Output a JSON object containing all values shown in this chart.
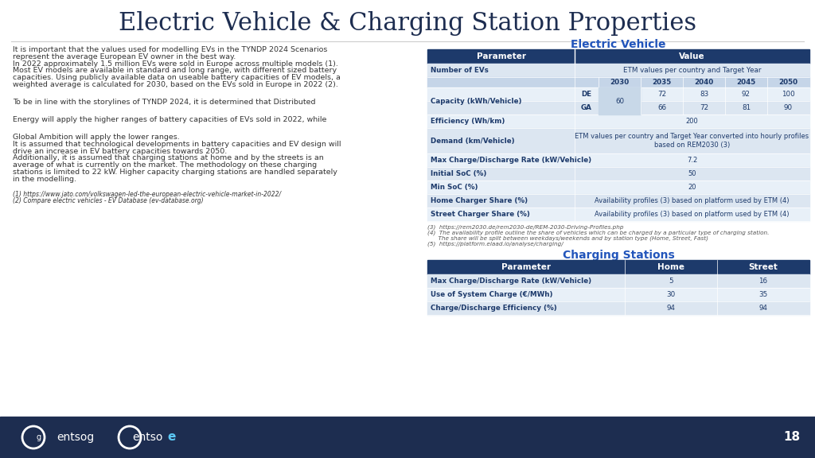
{
  "title": "Electric Vehicle & Charging Station Properties",
  "bg_color": "#ffffff",
  "footer_color": "#1d2d50",
  "title_color": "#1d2d50",
  "title_fontsize": 22,
  "ev_header_color": "#1d3a6b",
  "ev_text_color": "#1d3a6b",
  "ev_row_light": "#dce6f1",
  "ev_row_mid": "#c5d5e8",
  "ev_row_lighter": "#e8f0f8",
  "left_text": [
    "It is important that the values used for modelling EVs in the TYNDP 2024 Scenarios",
    "represent the average European EV owner in the best way.",
    "In 2022 approximately 1.5 million EVs were sold in Europe across multiple models (1).",
    "Most EV models are available in standard and long range, with different sized battery",
    "capacities. Using publicly available data on useable battery capacities of EV models, a",
    "weighted average is calculated for 2030, based on the EVs sold in Europe in 2022 (2).",
    "",
    "To be in line with the storylines of TYNDP 2024, it is determined that Distributed",
    "",
    "Energy will apply the higher ranges of battery capacities of EVs sold in 2022, while",
    "",
    "Global Ambition will apply the lower ranges.",
    "It is assumed that technological developments in battery capacities and EV design will",
    "drive an increase in EV battery capacities towards 2050.",
    "Additionally, it is assumed that charging stations at home and by the streets is an",
    "average of what is currently on the market. The methodology on these charging",
    "stations is limited to 22 kW. Higher capacity charging stations are handled separately",
    "in the modelling."
  ],
  "footnotes_left": [
    "(1) https://www.jato.com/volkswagen-led-the-european-electric-vehicle-market-in-2022/",
    "(2) Compare electric vehicles - EV Database (ev-database.org)"
  ],
  "ev_table_title": "Electric Vehicle",
  "cs_table_title": "Charging Stations",
  "ev_simple_rows": [
    {
      "param": "Number of EVs",
      "value": "ETM values per country and Target Year"
    },
    {
      "param": "Efficiency (Wh/km)",
      "value": "200"
    },
    {
      "param": "Demand (km/Vehicle)",
      "value": "ETM values per country and Target Year converted into hourly profiles\nbased on REM2030 (3)"
    },
    {
      "param": "Max Charge/Discharge Rate (kW/Vehicle)",
      "value": "7.2"
    },
    {
      "param": "Initial SoC (%)",
      "value": "50"
    },
    {
      "param": "Min SoC (%)",
      "value": "20"
    },
    {
      "param": "Home Charger Share (%)",
      "value": "Availability profiles (3) based on platform used by ETM (4)"
    },
    {
      "param": "Street Charger Share (%)",
      "value": "Availability profiles (3) based on platform used by ETM (4)"
    }
  ],
  "years": [
    "2030",
    "2035",
    "2040",
    "2045",
    "2050"
  ],
  "de_vals": [
    "60",
    "72",
    "83",
    "92",
    "100"
  ],
  "ga_vals": [
    "",
    "66",
    "72",
    "81",
    "90"
  ],
  "merged_2030": "60",
  "ev_footnotes": [
    "(3)  https://rem2030.de/rem2030-de/REM-2030-Driving-Profiles.php",
    "(4)  The availability profile outline the share of vehicles which can be charged by a particular type of charging station.",
    "      The share will be split between weekdays/weekends and by station type (Home, Street, Fast)",
    "(5)  https://platform.elaad.io/analyse/charging/"
  ],
  "cs_rows": [
    {
      "param": "Max Charge/Discharge Rate (kW/Vehicle)",
      "home": "5",
      "street": "16"
    },
    {
      "param": "Use of System Charge (€/MWh)",
      "home": "30",
      "street": "35"
    },
    {
      "param": "Charge/Discharge Efficiency (%)",
      "home": "94",
      "street": "94"
    }
  ],
  "page_number": "18"
}
